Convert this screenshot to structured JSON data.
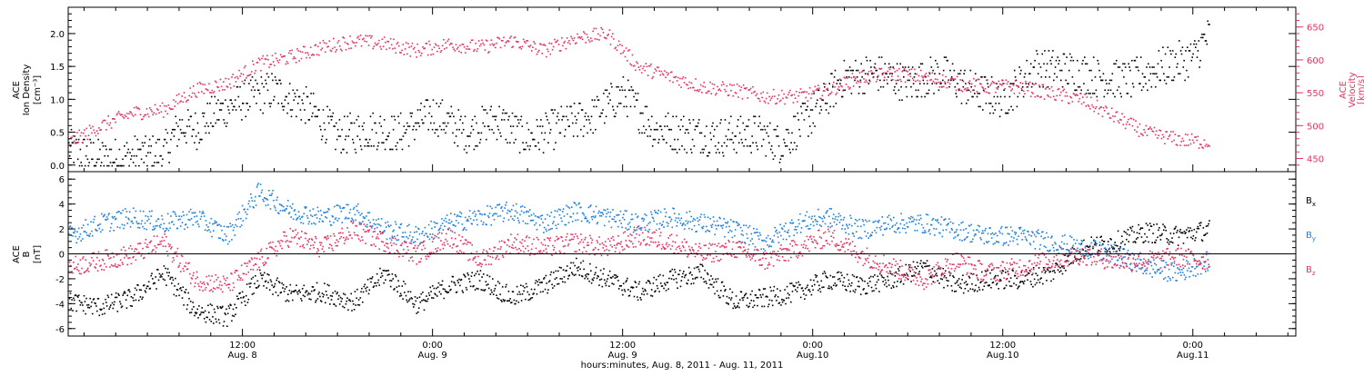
{
  "colors": {
    "black": "#000000",
    "pink": "#e8305f",
    "blue": "#1a7fe0"
  },
  "xaxis": {
    "label": "hours:minutes, Aug.  8, 2011 - Aug. 11, 2011",
    "ticks": [
      {
        "hour": 12,
        "time": "12:00",
        "day": "Aug. 8"
      },
      {
        "hour": 24,
        "time": "0:00",
        "day": "Aug. 9"
      },
      {
        "hour": 36,
        "time": "12:00",
        "day": "Aug. 9"
      },
      {
        "hour": 48,
        "time": "0:00",
        "day": "Aug.10"
      },
      {
        "hour": 60,
        "time": "12:00",
        "day": "Aug.10"
      },
      {
        "hour": 72,
        "time": "0:00",
        "day": "Aug.11"
      }
    ],
    "range_hours": [
      1,
      78.5
    ]
  },
  "chart_data": [
    {
      "type": "scatter",
      "panel": "top",
      "ylabel_left": [
        "ACE",
        "Ion Density",
        "[cm⁻³]"
      ],
      "ylabel_right": [
        "ACE",
        "Velocity",
        "[km/s]"
      ],
      "ylim_left": [
        -0.1,
        2.4
      ],
      "yticks_left": [
        "0.0",
        "0.5",
        "1.0",
        "1.5",
        "2.0"
      ],
      "ylim_right": [
        430,
        680
      ],
      "yticks_right": [
        "450",
        "500",
        "550",
        "600",
        "650"
      ],
      "series": [
        {
          "axis": "left",
          "color": "black",
          "x_hours": [
            1,
            3,
            5,
            7,
            8,
            9,
            10,
            12,
            14,
            16,
            18,
            20,
            22,
            24,
            26,
            28,
            30,
            32,
            34,
            36,
            38,
            40,
            42,
            44,
            46,
            48,
            50,
            52,
            54,
            56,
            58,
            60,
            62,
            64,
            66,
            68,
            70,
            72,
            73
          ],
          "y": [
            0.25,
            0.1,
            0.15,
            0.2,
            0.6,
            0.55,
            0.75,
            1.0,
            1.15,
            0.9,
            0.45,
            0.55,
            0.5,
            0.8,
            0.5,
            0.7,
            0.4,
            0.6,
            0.75,
            1.1,
            0.55,
            0.5,
            0.45,
            0.5,
            0.35,
            0.8,
            1.35,
            1.4,
            1.25,
            1.4,
            1.15,
            1.0,
            1.5,
            1.45,
            1.35,
            1.3,
            1.5,
            1.65,
            2.0
          ]
        },
        {
          "axis": "right",
          "color": "pink",
          "x_hours": [
            1,
            3,
            5,
            7,
            9,
            11,
            13,
            15,
            17,
            19,
            21,
            23,
            25,
            27,
            29,
            31,
            33,
            35,
            37,
            39,
            41,
            43,
            45,
            47,
            49,
            51,
            53,
            55,
            57,
            59,
            61,
            63,
            65,
            67,
            69,
            71,
            73
          ],
          "y": [
            475,
            500,
            520,
            525,
            555,
            565,
            595,
            605,
            620,
            630,
            625,
            615,
            625,
            620,
            630,
            615,
            635,
            640,
            590,
            575,
            560,
            555,
            545,
            545,
            555,
            575,
            580,
            575,
            565,
            560,
            560,
            550,
            540,
            515,
            490,
            480,
            475
          ]
        }
      ]
    },
    {
      "type": "scatter",
      "panel": "bottom",
      "ylabel_left": [
        "ACE",
        "B",
        "[nT]"
      ],
      "ylim": [
        -6.6,
        6.6
      ],
      "yticks": [
        "6",
        "4",
        "2",
        "0",
        "-2",
        "-4",
        "-6"
      ],
      "zero_line": true,
      "legend_placement": "right",
      "series": [
        {
          "name": "Bx",
          "color": "black",
          "x_hours": [
            1,
            3,
            5,
            7,
            9,
            11,
            13,
            15,
            17,
            19,
            21,
            23,
            25,
            27,
            29,
            31,
            33,
            35,
            37,
            39,
            41,
            43,
            45,
            47,
            49,
            51,
            53,
            55,
            57,
            59,
            61,
            63,
            65,
            67,
            69,
            71,
            73
          ],
          "y": [
            -3.8,
            -4.2,
            -3.5,
            -1.5,
            -4.5,
            -5.0,
            -2.0,
            -3.2,
            -3.0,
            -3.8,
            -1.5,
            -4.0,
            -2.5,
            -2.0,
            -3.5,
            -2.5,
            -1.0,
            -2.0,
            -3.0,
            -2.0,
            -1.5,
            -3.8,
            -3.5,
            -3.0,
            -2.0,
            -2.5,
            -2.0,
            -1.0,
            -2.5,
            -2.0,
            -2.0,
            -1.5,
            0.5,
            1.0,
            1.8,
            1.5,
            2.0
          ]
        },
        {
          "name": "By",
          "color": "blue",
          "x_hours": [
            1,
            3,
            5,
            7,
            9,
            11,
            13,
            15,
            17,
            19,
            21,
            23,
            25,
            27,
            29,
            31,
            33,
            35,
            37,
            39,
            41,
            43,
            45,
            47,
            49,
            51,
            53,
            55,
            57,
            59,
            61,
            63,
            65,
            67,
            69,
            71,
            73
          ],
          "y": [
            1.5,
            2.5,
            3.0,
            2.5,
            3.0,
            1.5,
            5.0,
            3.5,
            3.0,
            3.5,
            2.0,
            1.5,
            2.5,
            3.0,
            3.5,
            2.5,
            3.5,
            3.0,
            2.5,
            3.0,
            2.5,
            2.0,
            1.0,
            2.5,
            3.0,
            2.0,
            2.5,
            2.5,
            2.0,
            1.5,
            1.5,
            1.0,
            0.5,
            0.0,
            -1.0,
            -1.5,
            -0.5
          ]
        },
        {
          "name": "Bz",
          "color": "pink",
          "x_hours": [
            1,
            3,
            5,
            7,
            9,
            11,
            13,
            15,
            17,
            19,
            21,
            23,
            25,
            27,
            29,
            31,
            33,
            35,
            37,
            39,
            41,
            43,
            45,
            47,
            49,
            51,
            53,
            55,
            57,
            59,
            61,
            63,
            65,
            67,
            69,
            71,
            73
          ],
          "y": [
            -1.0,
            -0.5,
            0.0,
            1.0,
            -2.0,
            -2.5,
            -0.5,
            1.5,
            0.5,
            2.0,
            1.0,
            0.0,
            1.5,
            -0.5,
            1.0,
            0.5,
            1.0,
            0.5,
            1.5,
            1.0,
            0.0,
            0.5,
            -0.5,
            0.5,
            1.5,
            0.0,
            -1.0,
            -2.0,
            -0.5,
            -1.5,
            -1.0,
            -0.5,
            0.0,
            -0.5,
            -0.5,
            -0.2,
            -0.5
          ]
        }
      ]
    }
  ]
}
